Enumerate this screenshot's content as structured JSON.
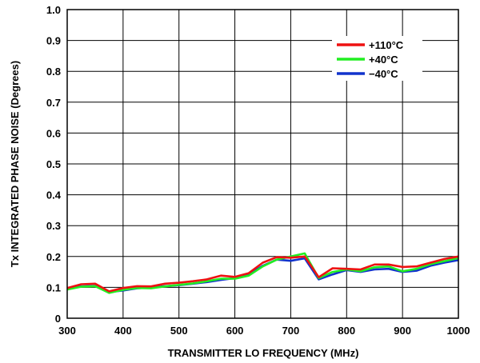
{
  "chart_data": {
    "type": "line",
    "xlabel": "TRANSMITTER LO FREQUENCY (MHz)",
    "ylabel": "Tx INTEGRATED PHASE NOISE (Degrees)",
    "xlim": [
      300,
      1000
    ],
    "ylim": [
      0,
      1.0
    ],
    "x_ticks": [
      "300",
      "400",
      "500",
      "600",
      "700",
      "800",
      "900",
      "1000"
    ],
    "y_ticks": [
      "0",
      "0.1",
      "0.2",
      "0.3",
      "0.4",
      "0.5",
      "0.6",
      "0.7",
      "0.8",
      "0.9",
      "1.0"
    ],
    "grid": true,
    "legend_position": "top-right",
    "x": [
      300,
      325,
      350,
      375,
      400,
      425,
      450,
      475,
      500,
      525,
      550,
      575,
      600,
      625,
      650,
      675,
      700,
      725,
      750,
      775,
      800,
      825,
      850,
      875,
      900,
      925,
      950,
      975,
      1000
    ],
    "series": [
      {
        "name": "+110°C",
        "color": "#ee1111",
        "values": [
          0.098,
          0.11,
          0.112,
          0.087,
          0.098,
          0.104,
          0.103,
          0.112,
          0.115,
          0.12,
          0.126,
          0.138,
          0.134,
          0.146,
          0.18,
          0.198,
          0.196,
          0.2,
          0.133,
          0.162,
          0.16,
          0.158,
          0.174,
          0.174,
          0.166,
          0.168,
          0.18,
          0.192,
          0.2
        ]
      },
      {
        "name": "+40°C",
        "color": "#22ee22",
        "values": [
          0.093,
          0.102,
          0.104,
          0.082,
          0.092,
          0.098,
          0.097,
          0.103,
          0.108,
          0.113,
          0.12,
          0.128,
          0.128,
          0.138,
          0.168,
          0.19,
          0.2,
          0.21,
          0.13,
          0.15,
          0.158,
          0.152,
          0.165,
          0.168,
          0.152,
          0.16,
          0.175,
          0.185,
          0.195
        ]
      },
      {
        "name": "−40°C",
        "color": "#1133cc",
        "values": [
          0.095,
          0.103,
          0.105,
          0.085,
          0.09,
          0.097,
          0.1,
          0.104,
          0.107,
          0.112,
          0.117,
          0.124,
          0.13,
          0.142,
          0.17,
          0.19,
          0.186,
          0.194,
          0.126,
          0.142,
          0.156,
          0.15,
          0.158,
          0.16,
          0.15,
          0.154,
          0.17,
          0.18,
          0.188
        ]
      }
    ]
  }
}
